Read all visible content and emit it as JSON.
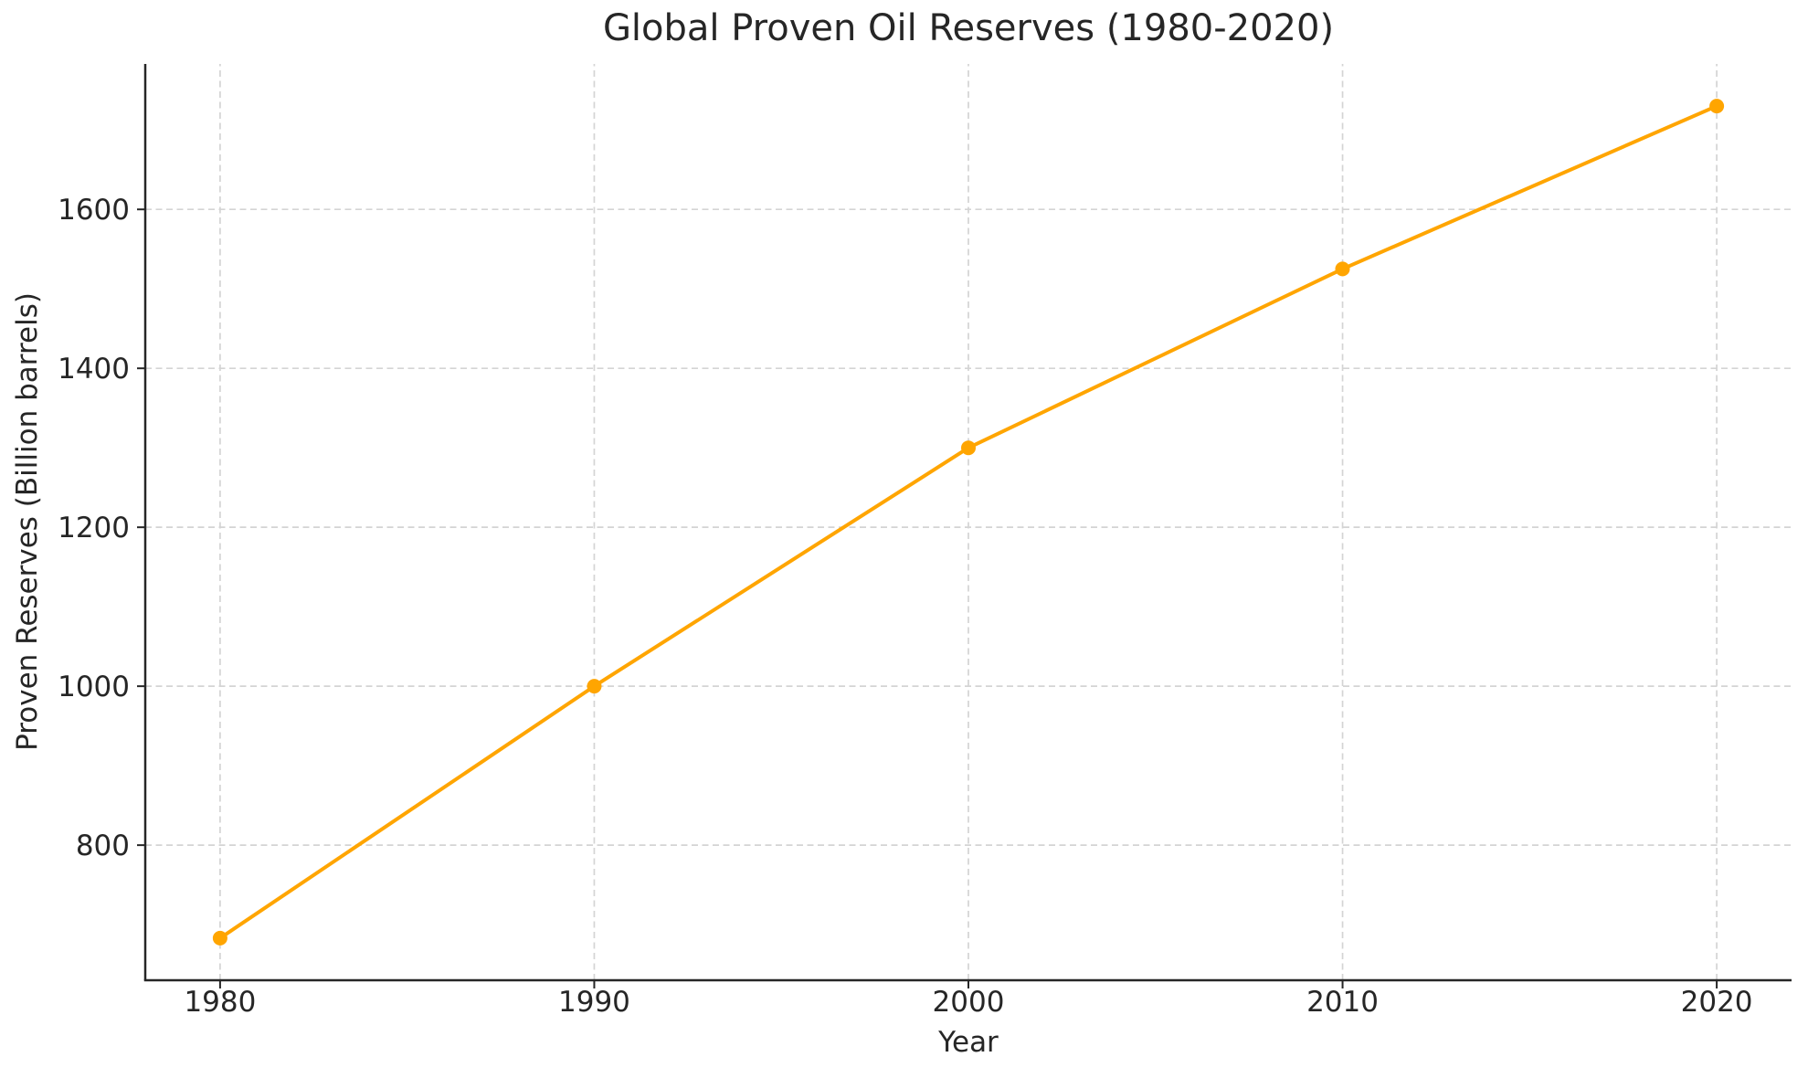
{
  "chart_data": {
    "type": "line",
    "title": "Global Proven Oil Reserves (1980-2020)",
    "xlabel": "Year",
    "ylabel": "Proven Reserves (Billion barrels)",
    "x": [
      1980,
      1990,
      2000,
      2010,
      2020
    ],
    "series": [
      {
        "name": "Proven Reserves",
        "values": [
          683,
          1000,
          1300,
          1525,
          1730
        ]
      }
    ],
    "xticks": [
      1980,
      1990,
      2000,
      2010,
      2020
    ],
    "yticks": [
      800,
      1000,
      1200,
      1400,
      1600
    ],
    "xlim": [
      1978,
      2022
    ],
    "ylim": [
      630,
      1783
    ],
    "grid": true,
    "grid_style": "dashed",
    "legend": "none",
    "colors": {
      "line": "#FFA500",
      "marker": "#FFA500",
      "grid": "#d4d4d4",
      "spine": "#262626",
      "text": "#262626",
      "background": "#ffffff"
    }
  }
}
